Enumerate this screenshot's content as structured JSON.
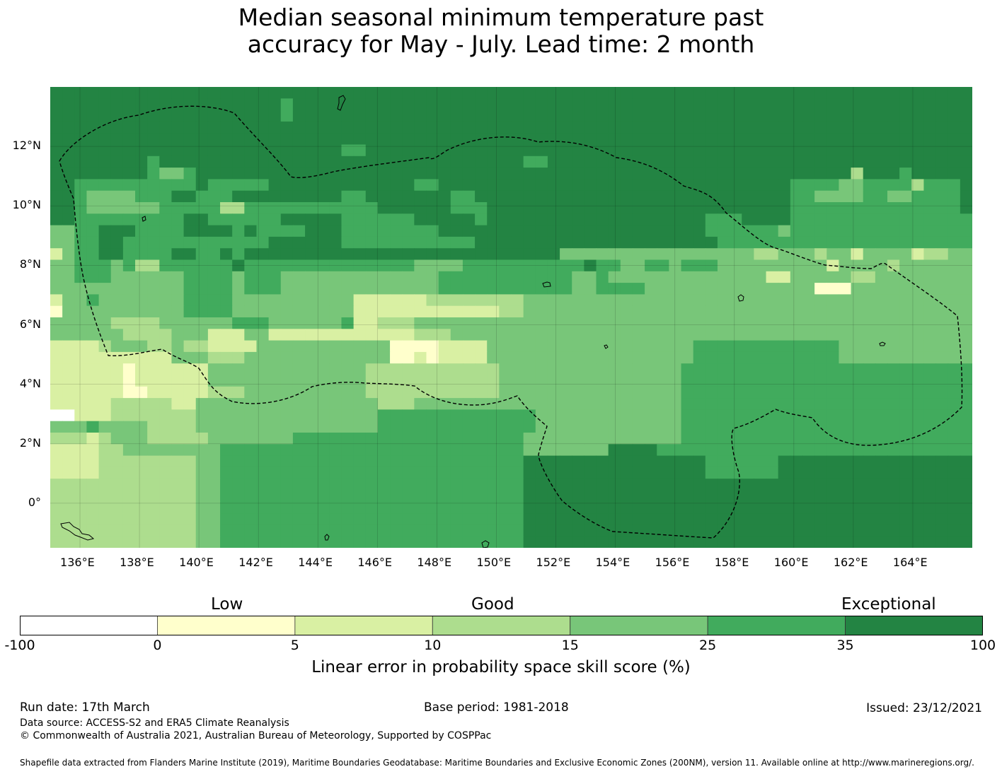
{
  "title_line1": "Median seasonal minimum temperature past",
  "title_line2": "accuracy for May - July. Lead time: 2 month",
  "chart_data": {
    "type": "heatmap",
    "variable": "Linear error in probability space skill score (%)",
    "lon_range": [
      135,
      166
    ],
    "lat_range": [
      -1.5,
      14
    ],
    "cell_size_deg": 0.84,
    "x_ticks": [
      "136°E",
      "138°E",
      "140°E",
      "142°E",
      "144°E",
      "146°E",
      "148°E",
      "150°E",
      "152°E",
      "154°E",
      "156°E",
      "158°E",
      "160°E",
      "162°E",
      "164°E"
    ],
    "y_ticks": [
      "12°N",
      "10°N",
      "8°N",
      "6°N",
      "4°N",
      "2°N",
      "0°"
    ],
    "x_tick_values": [
      136,
      138,
      140,
      142,
      144,
      146,
      148,
      150,
      152,
      154,
      156,
      158,
      160,
      162,
      164
    ],
    "y_tick_values": [
      12,
      10,
      8,
      6,
      4,
      2,
      0
    ],
    "class_codes": "0=-100..0, 1=0..5, 2=5..10, 3=10..15, 4=15..25, 5=25..35, 6=35..100",
    "grid": [
      "6666666666666666666666666666666666666666666666666666666666666666666666666666",
      "6666666666666666666566666666666666666666666666666666666666666666666666666666",
      "6666666666666666666566666666666666666666666666666666666666666666666666666666",
      "6666666666666666666666666666666666666666666666666666666666666666666666666666",
      "6666666666666666666666666666666666666666666666666666666666666666666666666666",
      "6666666666666666666666665566666666666666666666666666666666666666666666666666",
      "6666666656666666666666666666666666666665566666666666666666666666666666666666",
      "6666666654456666666666666666666666666666666666666666666666666666663666566666",
      "6655555555556555556666666666665566666666666666666666666666666555544555535556",
      "6654444555665556666666665566666665566666666666666666666666666554444554455556",
      "6654444445555533555555555556666665556666666666666666666666666555555555555556",
      "6655555555566555555666665555556666656666666666666666665556666555555555555555",
      "4455666555566665655556665555555566666666666666666666665555554555555555555555",
      "4455665555555555556666665555555555566666666666666666666555555555555555555555",
      "2455665555665565666666666666666666666666664444444444444444334443442444423344",
      "4455545335555556555555555555554444555555555565544554555444444444244443444444",
      "4455544444455554555444444444444455555555555445444444444444422444443344444444",
      "4444444444455554555444444444444455555555555445555444444444444441114444444444",
      "2445444444455554444444444222222333333334444444444444444444444444444444444444",
      "1444444444455554444444444222222222222334444444444444444444444444444444444444",
      "4444433334444445554444445223334444444444444444444444444444444444444444444444",
      "4444443333444222442222222222223334444444444444444444444444444444444444444444",
      "2222344433433222244444444444111122224444444444444444455555555555544444444444",
      "2222222222444333444444444444112122224444444444444444455555555555544444444444",
      "2222221222222444444444444433333333333444444444444444555555555555555555555555",
      "2222221222222444444444444433333333333444444444444444555555555555555555555555",
      "2222221122222333444444444433333333333444444444444444555555555555555555555555",
      "2222233333224444444444444443334444444444444444444444555555555555555555555555",
      "0022233333334444444444444445555555555555444444444444555555555555555555555555",
      "4445444433334444444444444445555555555555444444444444555555555555555555555555",
      "3332344433333444444455555555555555555554444444444444555555555555555555555555",
      "2222334444444455555555555555555555555554444444666655555555555555555555555555",
      "2222333333334455555555555555555555555556666666666666665555556666666666666666",
      "2222333333334455555555555555555555555556666666666666665555556666666666666666",
      "3333333333334455555555555555555555555556666666666666666666666666666666666666",
      "3333333333334455555555555555555555555556666666666666666666666666666666666666",
      "3333333333334455555555555555555555555556666666666666666666666666666666666666",
      "3333333333334455555555555555555555555556666666666666666666666666666666666666",
      "3333333333334455555555555555555555555556666666666666666666666666666666666666",
      "3333333333334455555555555555555555555556666666666666666666666666666666666666"
    ]
  },
  "colorbar": {
    "headings": [
      "Low",
      "Good",
      "Exceptional"
    ],
    "ticks": [
      "-100",
      "0",
      "5",
      "10",
      "15",
      "25",
      "35",
      "100"
    ],
    "colors": [
      "#ffffff",
      "#ffffcc",
      "#d9f0a3",
      "#addd8e",
      "#78c679",
      "#41ab5d",
      "#238443"
    ],
    "label": "Linear error in probability space skill score (%)"
  },
  "footer": {
    "run_date": "Run date: 17th March",
    "base_period": "Base period: 1981-2018",
    "issued": "Issued: 23/12/2021",
    "data_source": "Data source: ACCESS-S2 and ERA5 Climate Reanalysis",
    "copyright": "© Commonwealth of Australia 2021, Australian Bureau of Meteorology, Supported by COSPPac",
    "shapefile": "Shapefile data extracted from Flanders Marine Institute (2019), Maritime Boundaries Geodatabase: Maritime Boundaries and Exclusive Economic Zones (200NM), version 11. Available online at http://www.marineregions.org/."
  }
}
